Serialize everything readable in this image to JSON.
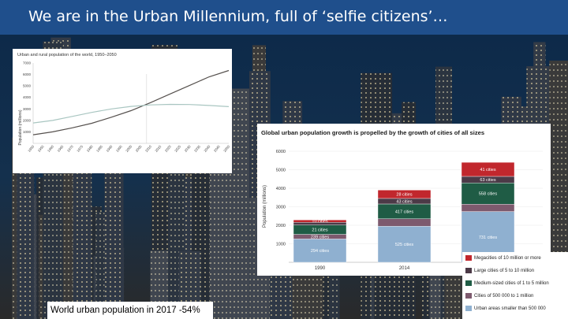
{
  "title": "We are in the Urban Millennium, full of ‘selfie citizens’…",
  "caption": "World urban population in 2017 -54%",
  "colors": {
    "title_bar": "#1f4f8c",
    "urban": "#55504d",
    "rural": "#a9c6c1",
    "cat1": "#c1272d",
    "cat2": "#4c3a47",
    "cat3": "#1f5c45",
    "cat4": "#7d5a6e",
    "cat5": "#8fb0d0"
  },
  "chart_data": [
    {
      "type": "line",
      "title": "Urban and rural population of the world, 1950–2050",
      "ylabel": "Population (millions)",
      "ylim": [
        0,
        7000
      ],
      "y_ticks": [
        "7000",
        "6000",
        "5000",
        "4000",
        "3000",
        "2000",
        "1000"
      ],
      "x_ticks": [
        "1950",
        "1955",
        "1960",
        "1965",
        "1970",
        "1975",
        "1980",
        "1985",
        "1990",
        "1995",
        "2000",
        "2005",
        "2010",
        "2015",
        "2020",
        "2025",
        "2030",
        "2035",
        "2040",
        "2045",
        "2050"
      ],
      "x": [
        1950,
        1960,
        1970,
        1980,
        1990,
        2000,
        2010,
        2020,
        2030,
        2040,
        2050
      ],
      "series": [
        {
          "values": [
            750,
            1000,
            1350,
            1750,
            2280,
            2850,
            3550,
            4300,
            5050,
            5800,
            6350
          ]
        },
        {
          "values": [
            1780,
            2000,
            2350,
            2700,
            3000,
            3220,
            3350,
            3400,
            3380,
            3300,
            3200
          ]
        }
      ]
    },
    {
      "type": "bar",
      "title": "Global urban population growth is propelled by the growth of cities of all sizes",
      "ylabel": "Population (millions)",
      "ylim": [
        0,
        6000
      ],
      "y_ticks": [
        "6000",
        "5000",
        "4000",
        "3000",
        "2000",
        "1000"
      ],
      "categories": [
        "1990",
        "2014",
        ""
      ],
      "legend": [
        "Megacities of 10 million or more",
        "Large cities of 5 to 10 million",
        "Medium-sized cities of 1 to 5 million",
        "Cities of 500 000 to 1 million",
        "Urban areas smaller than 500 000"
      ],
      "series": [
        {
          "values": [
            1260,
            1950,
            2740
          ],
          "labels": [
            "294 cities",
            "525 cities",
            "731 cities"
          ]
        },
        {
          "values": [
            250,
            400,
            400
          ],
          "labels": [
            "239 cities",
            "",
            ""
          ]
        },
        {
          "values": [
            500,
            800,
            1150
          ],
          "labels": [
            "21 cities",
            "417 cities",
            "558 cities"
          ]
        },
        {
          "values": [
            150,
            300,
            350
          ],
          "labels": [
            "",
            "43 cities",
            "63 cities"
          ]
        },
        {
          "values": [
            130,
            450,
            760
          ],
          "labels": [
            "10 cities",
            "28 cities",
            "41 cities"
          ]
        }
      ]
    }
  ]
}
